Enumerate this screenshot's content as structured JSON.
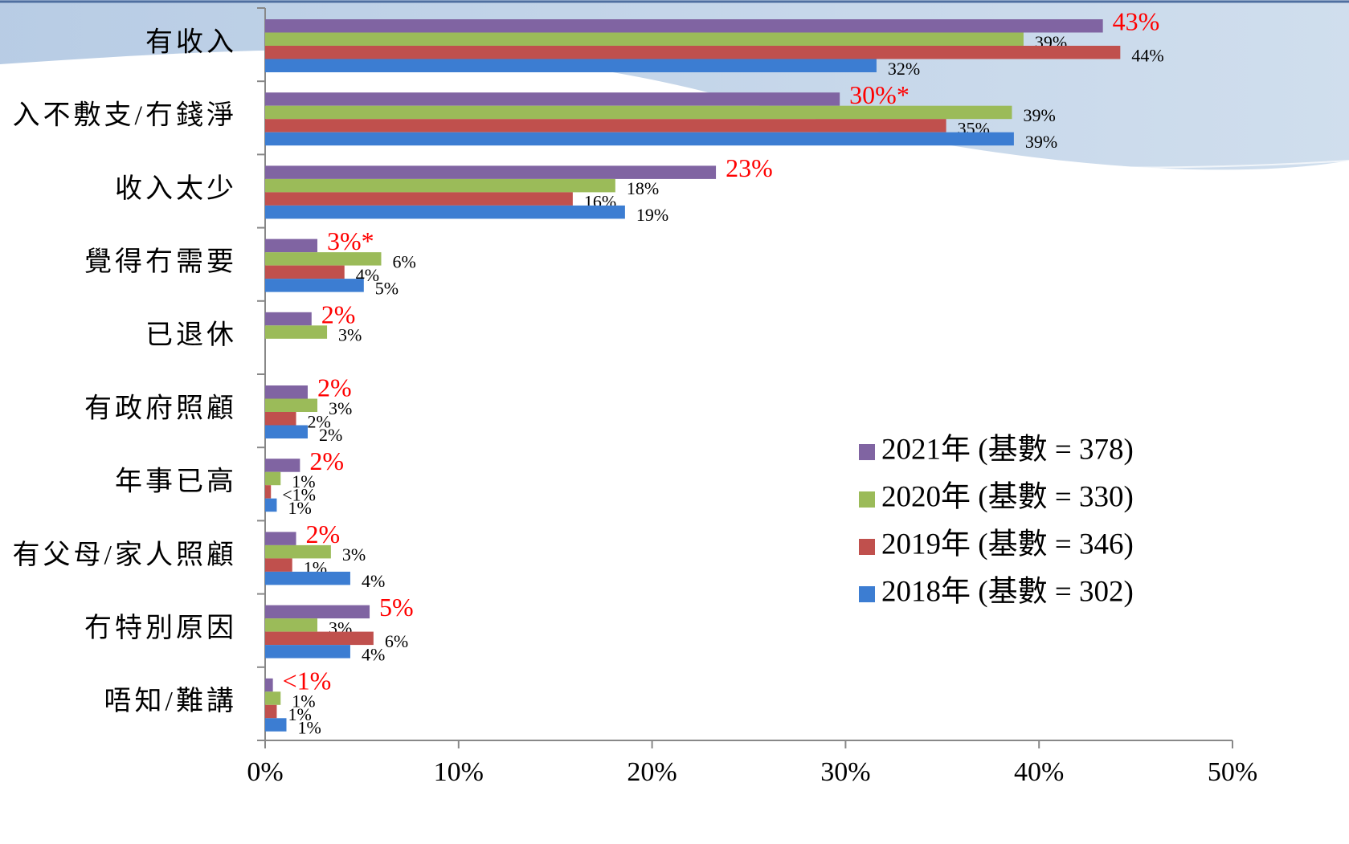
{
  "chart_data": {
    "type": "hbar",
    "categories": [
      "有收入",
      "入不敷支/冇錢淨",
      "收入太少",
      "覺得冇需要",
      "已退休",
      "有政府照顧",
      "年事已高",
      "有父母/家人照顧",
      "冇特別原因",
      "唔知/難講"
    ],
    "series": [
      {
        "name": "2021年 (基數 = 378)",
        "color": "#8064a2",
        "label_color": "#ff0000",
        "values": [
          43.3,
          29.7,
          23.3,
          2.7,
          2.4,
          2.2,
          1.8,
          1.6,
          5.4,
          0.4
        ],
        "value_labels": [
          "43%",
          "30%*",
          "23%",
          "3%*",
          "2%",
          "2%",
          "2%",
          "2%",
          "5%",
          "<1%"
        ]
      },
      {
        "name": "2020年 (基數 = 330)",
        "color": "#9bbb59",
        "label_color": "#000000",
        "values": [
          39.2,
          38.6,
          18.1,
          6.0,
          3.2,
          2.7,
          0.8,
          3.4,
          2.7,
          0.8
        ],
        "value_labels": [
          "39%",
          "39%",
          "18%",
          "6%",
          "3%",
          "3%",
          "1%",
          "3%",
          "3%",
          "1%"
        ]
      },
      {
        "name": "2019年 (基數 = 346)",
        "color": "#c0504d",
        "label_color": "#000000",
        "values": [
          44.2,
          35.2,
          15.9,
          4.1,
          null,
          1.6,
          0.3,
          1.4,
          5.6,
          0.6
        ],
        "value_labels": [
          "44%",
          "35%",
          "16%",
          "4%",
          null,
          "2%",
          "<1%",
          "1%",
          "6%",
          "1%"
        ]
      },
      {
        "name": "2018年 (基數 = 302)",
        "color": "#3c7dd2",
        "label_color": "#000000",
        "values": [
          31.6,
          38.7,
          18.6,
          5.1,
          null,
          2.2,
          0.6,
          4.4,
          4.4,
          1.1
        ],
        "value_labels": [
          "32%",
          "39%",
          "19%",
          "5%",
          null,
          "2%",
          "1%",
          "4%",
          "4%",
          "1%"
        ]
      }
    ],
    "xlim": [
      0,
      50
    ],
    "xticks": [
      {
        "value": 0,
        "label": "0%"
      },
      {
        "value": 10,
        "label": "10%"
      },
      {
        "value": 20,
        "label": "20%"
      },
      {
        "value": 30,
        "label": "30%"
      },
      {
        "value": 40,
        "label": "40%"
      },
      {
        "value": 50,
        "label": "50%"
      }
    ]
  }
}
